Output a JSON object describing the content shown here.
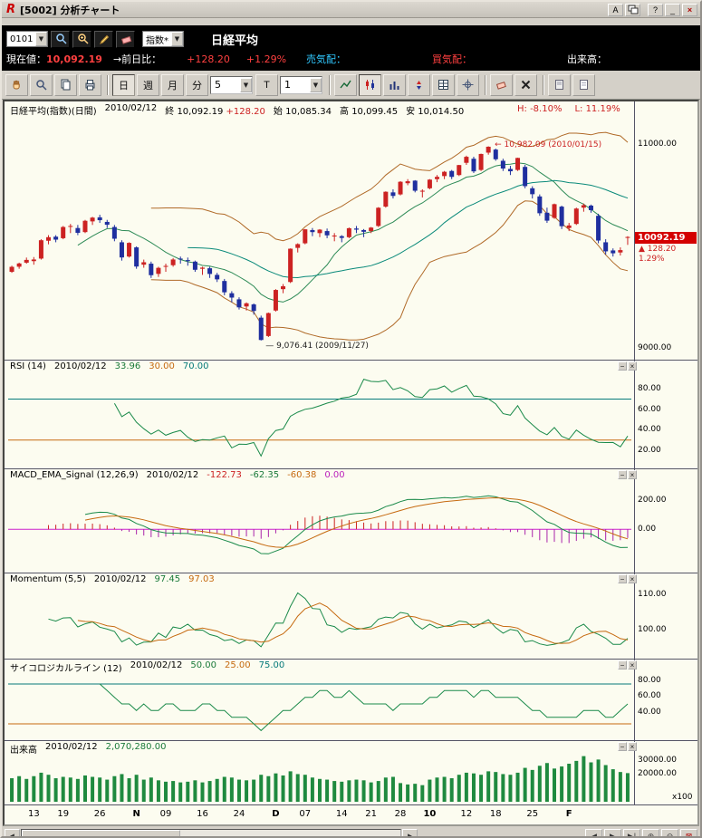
{
  "window": {
    "logo_letter": "R",
    "title": "[5002] 分析チャート",
    "btn_a": "A",
    "btn_help": "?",
    "btn_min": "_",
    "btn_close": "×"
  },
  "toolbar_top": {
    "preset": "0101",
    "index_type": "指数*",
    "symbol": "日経平均"
  },
  "quote": {
    "current_label": "現在値：",
    "current": "10,092.19",
    "prev_label": "→前日比：",
    "change": "+128.20",
    "change_pct": "+1.29%",
    "ask_label": "売気配：",
    "bid_label": "買気配：",
    "vol_label": "出来高："
  },
  "toolbar": {
    "day": "日",
    "week": "週",
    "month": "月",
    "minute": "分",
    "minute_value": "5",
    "t_label": "T",
    "tick_value": "1"
  },
  "main": {
    "title": "日経平均(指数)(日間)",
    "date": "2010/02/12",
    "close_label": "終",
    "close": "10,092.19",
    "change": "+128.20",
    "open_label": "始",
    "open": "10,085.34",
    "high_label": "高",
    "high": "10,099.45",
    "low_label": "安",
    "low": "10,014.50",
    "h_pct": "H: -8.10%",
    "l_pct": "L: 11.19%",
    "price_tag": "10092.19",
    "tag_change": "▲ 128.20",
    "tag_pct": "1.29%",
    "ann_high": "← 10,982.09 (2010/01/15)",
    "ann_low": "— 9,076.41 (2009/11/27)"
  },
  "panels": {
    "rsi": {
      "title": "RSI (14)",
      "date": "2010/02/12",
      "value": "33.96",
      "lower": "30.00",
      "upper": "70.00"
    },
    "macd": {
      "title": "MACD_EMA_Signal (12,26,9)",
      "date": "2010/02/12",
      "macd": "-122.73",
      "hist": "-62.35",
      "signal": "-60.38",
      "zero": "0.00"
    },
    "momentum": {
      "title": "Momentum (5,5)",
      "date": "2010/02/12",
      "value": "97.45",
      "signal": "97.03"
    },
    "psych": {
      "title": "サイコロジカルライン (12)",
      "date": "2010/02/12",
      "value": "50.00",
      "lower": "25.00",
      "upper": "75.00"
    },
    "volume": {
      "title": "出来高",
      "date": "2010/02/12",
      "value": "2,070,280.00",
      "unit": "x100"
    }
  },
  "icons": {
    "dropdown": "▼",
    "minimize": "−",
    "panel_x": "×",
    "scroll_left": "◄",
    "scroll_right": "►",
    "nav_left": "◀",
    "nav_right": "▶",
    "nav_end": "▶|",
    "zoom_in": "⊕",
    "zoom_out": "⊖",
    "chart_close": "⊠"
  },
  "colors": {
    "up": "#cc2222",
    "down": "#1f2f9f",
    "band": "#b06a28",
    "ma1": "#2e8b57",
    "ma2": "#0a8a7a",
    "ind": "#1a8a4a",
    "ind2": "#c66a10",
    "histP": "#cc2222",
    "histN": "#aa22aa",
    "zero": "#cc22cc",
    "volbar": "#1f8a3f"
  },
  "chart_data": {
    "type": "candlestick",
    "instrument": "日経平均 (Nikkei 225, daily)",
    "last_close": 10092.19,
    "scales": {
      "main": [
        8950,
        11280
      ],
      "rsi": [
        5,
        97
      ],
      "macd": [
        -280,
        340
      ],
      "momentum": [
        92.5,
        112.8
      ],
      "psych": [
        8,
        92
      ],
      "volume": [
        0,
        36000
      ]
    },
    "axis": {
      "main": [
        [
          11000,
          "11000.00"
        ],
        [
          9000,
          "9000.00"
        ]
      ],
      "rsi": [
        [
          80,
          "80.00"
        ],
        [
          60,
          "60.00"
        ],
        [
          40,
          "40.00"
        ],
        [
          20,
          "20.00"
        ]
      ],
      "macd": [
        [
          200,
          "200.00"
        ],
        [
          0,
          "0.00"
        ]
      ],
      "momentum": [
        [
          110,
          "110.00"
        ],
        [
          100,
          "100.00"
        ]
      ],
      "psych": [
        [
          80,
          "80.00"
        ],
        [
          60,
          "60.00"
        ],
        [
          40,
          "40.00"
        ]
      ],
      "volume": [
        [
          30000,
          "30000.00"
        ],
        [
          20000,
          "20000.00"
        ]
      ]
    },
    "lines": {
      "rsi": [
        [
          70,
          "#067a7a"
        ],
        [
          30,
          "#c66a10"
        ]
      ],
      "psych": [
        [
          75,
          "#067a7a"
        ],
        [
          25,
          "#c66a10"
        ]
      ]
    },
    "indicators": {
      "rsi_period": 14,
      "macd_params": [
        12,
        26,
        9
      ],
      "momentum_params": [
        5,
        5
      ],
      "psych_period": 12,
      "bollinger": [
        20,
        2
      ],
      "ma_short": 10,
      "ma_long": 25
    },
    "x_ticks": [
      {
        "label": "13",
        "i": 3
      },
      {
        "label": "19",
        "i": 7
      },
      {
        "label": "26",
        "i": 12
      },
      {
        "label": "N",
        "i": 17,
        "bold": true
      },
      {
        "label": "09",
        "i": 21
      },
      {
        "label": "16",
        "i": 26
      },
      {
        "label": "24",
        "i": 31
      },
      {
        "label": "D",
        "i": 36,
        "bold": true
      },
      {
        "label": "07",
        "i": 40
      },
      {
        "label": "14",
        "i": 45
      },
      {
        "label": "21",
        "i": 49
      },
      {
        "label": "28",
        "i": 53
      },
      {
        "label": "10",
        "i": 57,
        "bold": true
      },
      {
        "label": "12",
        "i": 62
      },
      {
        "label": "18",
        "i": 66
      },
      {
        "label": "25",
        "i": 71
      },
      {
        "label": "F",
        "i": 76,
        "bold": true
      }
    ],
    "candles": [
      [
        9750,
        9810,
        9740,
        9799
      ],
      [
        9800,
        9840,
        9780,
        9832
      ],
      [
        9840,
        9890,
        9830,
        9867
      ],
      [
        9855,
        9895,
        9820,
        9871
      ],
      [
        9880,
        10070,
        9870,
        10060
      ],
      [
        10055,
        10110,
        10020,
        10090
      ],
      [
        10095,
        10110,
        10040,
        10066
      ],
      [
        10080,
        10200,
        10070,
        10190
      ],
      [
        10195,
        10220,
        10130,
        10200
      ],
      [
        10180,
        10210,
        10110,
        10133
      ],
      [
        10140,
        10260,
        10130,
        10251
      ],
      [
        10245,
        10290,
        10210,
        10282
      ],
      [
        10285,
        10310,
        10230,
        10257
      ],
      [
        10240,
        10260,
        10180,
        10212
      ],
      [
        10190,
        10210,
        10050,
        10075
      ],
      [
        10040,
        10060,
        9860,
        9891
      ],
      [
        9900,
        10040,
        9890,
        10034
      ],
      [
        9990,
        10000,
        9780,
        9802
      ],
      [
        9820,
        9870,
        9790,
        9844
      ],
      [
        9830,
        9850,
        9690,
        9717
      ],
      [
        9730,
        9800,
        9700,
        9789
      ],
      [
        9800,
        9830,
        9750,
        9808
      ],
      [
        9815,
        9885,
        9800,
        9871
      ],
      [
        9880,
        9900,
        9830,
        9871
      ],
      [
        9865,
        9890,
        9810,
        9861
      ],
      [
        9850,
        9860,
        9750,
        9770
      ],
      [
        9780,
        9800,
        9720,
        9791
      ],
      [
        9785,
        9800,
        9690,
        9729
      ],
      [
        9720,
        9740,
        9650,
        9676
      ],
      [
        9660,
        9680,
        9520,
        9549
      ],
      [
        9540,
        9560,
        9450,
        9497
      ],
      [
        9480,
        9500,
        9380,
        9401
      ],
      [
        9410,
        9450,
        9370,
        9441
      ],
      [
        9430,
        9440,
        9330,
        9366
      ],
      [
        9300,
        9320,
        9076,
        9081
      ],
      [
        9120,
        9350,
        9110,
        9345
      ],
      [
        9370,
        9580,
        9360,
        9572
      ],
      [
        9580,
        9630,
        9540,
        9608
      ],
      [
        9650,
        9980,
        9640,
        9977
      ],
      [
        9985,
        10030,
        9940,
        10022
      ],
      [
        10030,
        10170,
        10020,
        10167
      ],
      [
        10160,
        10180,
        10100,
        10140
      ],
      [
        10130,
        10170,
        10090,
        10164
      ],
      [
        10150,
        10175,
        10080,
        10108
      ],
      [
        10100,
        10130,
        10050,
        10106
      ],
      [
        10100,
        10110,
        10040,
        10083
      ],
      [
        10090,
        10185,
        10080,
        10178
      ],
      [
        10175,
        10200,
        10130,
        10164
      ],
      [
        10160,
        10170,
        10090,
        10143
      ],
      [
        10150,
        10190,
        10130,
        10184
      ],
      [
        10200,
        10385,
        10190,
        10379
      ],
      [
        10390,
        10540,
        10380,
        10536
      ],
      [
        10530,
        10560,
        10470,
        10495
      ],
      [
        10510,
        10640,
        10500,
        10634
      ],
      [
        10620,
        10660,
        10600,
        10639
      ],
      [
        10645,
        10650,
        10530,
        10546
      ],
      [
        10540,
        10560,
        10480,
        10546
      ],
      [
        10570,
        10660,
        10560,
        10655
      ],
      [
        10660,
        10700,
        10630,
        10682
      ],
      [
        10690,
        10740,
        10660,
        10732
      ],
      [
        10740,
        10750,
        10660,
        10682
      ],
      [
        10700,
        10800,
        10690,
        10798
      ],
      [
        10820,
        10890,
        10800,
        10879
      ],
      [
        10860,
        10880,
        10720,
        10736
      ],
      [
        10750,
        10910,
        10740,
        10907
      ],
      [
        10920,
        10982,
        10900,
        10978
      ],
      [
        10950,
        10960,
        10840,
        10855
      ],
      [
        10840,
        10860,
        10740,
        10764
      ],
      [
        10760,
        10790,
        10700,
        10737
      ],
      [
        10750,
        10870,
        10740,
        10868
      ],
      [
        10780,
        10800,
        10570,
        10591
      ],
      [
        10570,
        10590,
        10470,
        10512
      ],
      [
        10490,
        10510,
        10300,
        10325
      ],
      [
        10330,
        10380,
        10230,
        10252
      ],
      [
        10280,
        10420,
        10270,
        10414
      ],
      [
        10390,
        10400,
        10170,
        10198
      ],
      [
        10180,
        10230,
        10150,
        10205
      ],
      [
        10220,
        10380,
        10210,
        10371
      ],
      [
        10380,
        10420,
        10340,
        10404
      ],
      [
        10400,
        10410,
        10330,
        10355
      ],
      [
        10300,
        10320,
        10030,
        10057
      ],
      [
        10040,
        10070,
        9920,
        9951
      ],
      [
        9960,
        9980,
        9900,
        9932
      ],
      [
        9940,
        9990,
        9910,
        9963
      ],
      [
        10085.34,
        10099.45,
        10014.5,
        10092.19
      ]
    ],
    "volume_x100": [
      17000,
      18500,
      16500,
      18500,
      21000,
      19500,
      17000,
      18000,
      17500,
      16500,
      19000,
      18000,
      17500,
      16000,
      18500,
      20000,
      17000,
      19500,
      16000,
      17500,
      15500,
      14500,
      15000,
      14000,
      14500,
      15500,
      14000,
      15000,
      16500,
      18000,
      17500,
      16000,
      15500,
      16000,
      19500,
      18500,
      20500,
      19000,
      22000,
      20000,
      19500,
      17500,
      16500,
      16000,
      15000,
      14500,
      15500,
      16000,
      15500,
      14000,
      15000,
      17500,
      18000,
      13500,
      12500,
      13000,
      12000,
      16000,
      17500,
      18000,
      17000,
      19500,
      21000,
      20500,
      19500,
      22000,
      21500,
      20000,
      19500,
      21000,
      24500,
      23000,
      26000,
      28000,
      24000,
      25500,
      27500,
      29500,
      33000,
      28500,
      30500,
      26500,
      23500,
      21500,
      20702.8
    ]
  }
}
